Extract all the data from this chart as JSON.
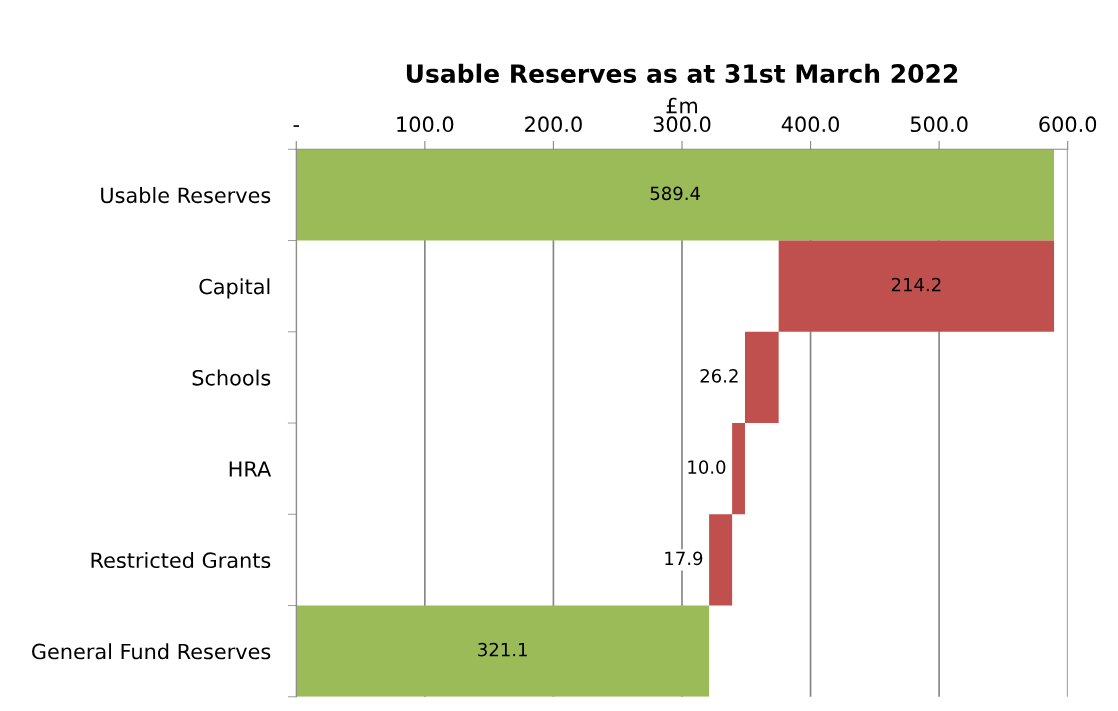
{
  "chart_data": {
    "type": "bar",
    "orientation": "horizontal",
    "title": "Usable Reserves as at 31st March 2022",
    "xlabel": "£m",
    "categories": [
      "Usable Reserves",
      "Capital",
      "Schools",
      "HRA",
      "Restricted Grants",
      "General Fund Reserves"
    ],
    "values": [
      589.4,
      214.2,
      26.2,
      10.0,
      17.9,
      321.1
    ],
    "base": [
      0,
      375.2,
      349.0,
      339.0,
      321.1,
      0
    ],
    "value_labels": [
      "589.4",
      "214.2",
      "26.2",
      "10.0",
      "17.9",
      "321.1"
    ],
    "colors": [
      "#9bbb59",
      "#c0504d",
      "#c0504d",
      "#c0504d",
      "#c0504d",
      "#9bbb59"
    ],
    "xlim": [
      0,
      600
    ],
    "xticks": [
      {
        "value": 0,
        "label": "-"
      },
      {
        "value": 100,
        "label": "100.0"
      },
      {
        "value": 200,
        "label": "200.0"
      },
      {
        "value": 300,
        "label": "300.0"
      },
      {
        "value": 400,
        "label": "400.0"
      },
      {
        "value": 500,
        "label": "500.0"
      },
      {
        "value": 600,
        "label": "600.0"
      }
    ],
    "grid": "x",
    "legend": false
  }
}
